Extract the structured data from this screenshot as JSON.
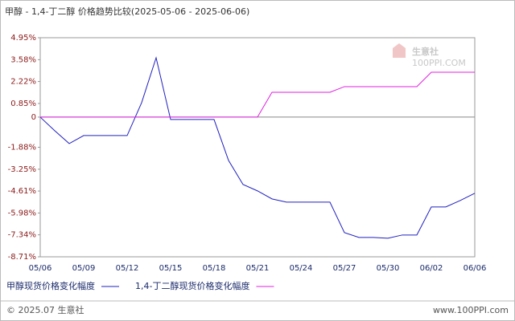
{
  "chart_data": {
    "type": "line",
    "title": "甲醇 - 1,4-丁二醇 价格趋势比较(2025-05-06 - 2025-06-06)",
    "watermark": "生意社",
    "watermark_url": "100PPI.COM",
    "footer_left": "© 2025.07 生意社",
    "footer_right": "www.100PPI.com",
    "categories": [
      "05/06",
      null,
      null,
      "05/09",
      null,
      null,
      "05/12",
      null,
      null,
      "05/15",
      null,
      null,
      "05/18",
      null,
      null,
      "05/21",
      null,
      null,
      "05/24",
      null,
      null,
      "05/27",
      null,
      null,
      "05/30",
      null,
      null,
      "06/02",
      null,
      null,
      "06/06"
    ],
    "ylim": [
      -8.71,
      4.95
    ],
    "yticks": [
      {
        "value": 4.95,
        "label": "4.95%"
      },
      {
        "value": 3.58,
        "label": "3.58%"
      },
      {
        "value": 2.22,
        "label": "2.22%"
      },
      {
        "value": 0.85,
        "label": "0.85%"
      },
      0,
      {
        "value": -1.88,
        "label": "-1.88%"
      },
      {
        "value": -3.25,
        "label": "-3.25%"
      },
      {
        "value": -4.61,
        "label": "-4.61%"
      },
      {
        "value": -5.98,
        "label": "-5.98%"
      },
      {
        "value": -7.34,
        "label": "-7.34%"
      },
      {
        "value": -8.71,
        "label": "-8.71%"
      }
    ],
    "grid": false,
    "series": [
      {
        "name": "甲醇现货价格变化幅度",
        "color": "#2020c0",
        "values": [
          0,
          -0.85,
          -1.65,
          -1.15,
          -1.15,
          -1.15,
          -1.15,
          0.9,
          3.7,
          -0.15,
          -0.15,
          -0.15,
          -0.15,
          -2.7,
          -4.2,
          -4.6,
          -5.1,
          -5.3,
          -5.3,
          -5.3,
          -5.3,
          -7.2,
          -7.5,
          -7.5,
          -7.55,
          -7.35,
          -7.35,
          -5.6,
          -5.6,
          -5.2,
          -4.75
        ]
      },
      {
        "name": "1,4-丁二醇现货价格变化幅度",
        "color": "#e020e0",
        "values": [
          0,
          0,
          0,
          0,
          0,
          0,
          0,
          0,
          0,
          0,
          0,
          0,
          0,
          0,
          0,
          0,
          1.55,
          1.55,
          1.55,
          1.55,
          1.55,
          1.9,
          1.9,
          1.9,
          1.9,
          1.9,
          1.9,
          2.8,
          2.8,
          2.8,
          2.8
        ]
      }
    ]
  }
}
